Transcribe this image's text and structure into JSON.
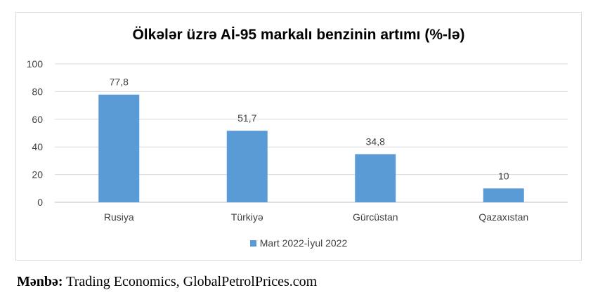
{
  "chart_data": {
    "type": "bar",
    "title": "Ölkələr üzrə Aİ-95 markalı benzinin artımı (%-lə)",
    "categories": [
      "Rusiya",
      "Türkiyə",
      "Gürcüstan",
      "Qazaxıstan"
    ],
    "series": [
      {
        "name": "Mart 2022-İyul 2022",
        "values": [
          77.8,
          51.7,
          34.8,
          10
        ],
        "labels": [
          "77,8",
          "51,7",
          "34,8",
          "10"
        ],
        "color": "#5b9bd5"
      }
    ],
    "ylim": [
      0,
      100
    ],
    "yticks": [
      0,
      20,
      40,
      60,
      80,
      100
    ],
    "grid": true,
    "legend_position": "bottom"
  },
  "source": {
    "label": "Mənbə:",
    "text": " Trading Economics, GlobalPetrolPrices.com"
  }
}
